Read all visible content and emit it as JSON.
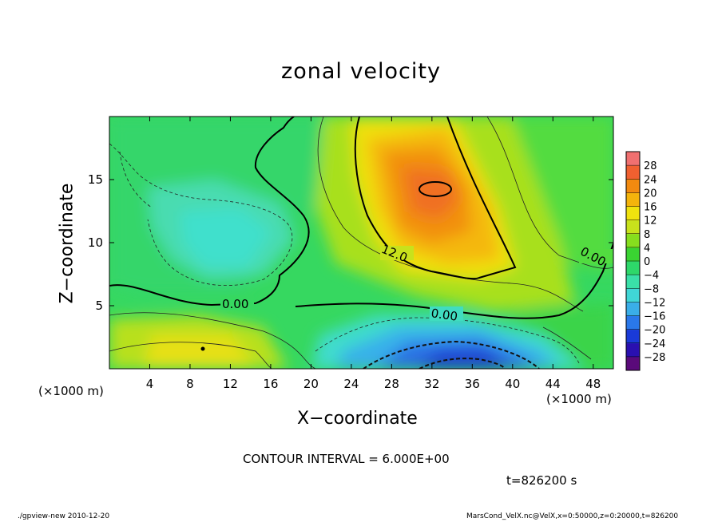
{
  "chart_data": {
    "type": "heatmap",
    "title": "zonal velocity",
    "xlabel": "X−coordinate",
    "ylabel": "Z−coordinate",
    "x_unit_left": "(×1000 m)",
    "x_unit_right": "(×1000 m)",
    "xlim": [
      0,
      50
    ],
    "ylim": [
      0,
      20
    ],
    "x_ticks": [
      4,
      8,
      12,
      16,
      20,
      24,
      28,
      32,
      36,
      40,
      44,
      48
    ],
    "y_ticks": [
      5,
      10,
      15
    ],
    "colorbar": {
      "labels": [
        "28",
        "24",
        "20",
        "16",
        "12",
        "8",
        "4",
        "0",
        "−4",
        "−8",
        "−12",
        "−16",
        "−20",
        "−24",
        "−28"
      ],
      "range": [
        -30,
        30
      ],
      "colors": [
        "#5a0a7a",
        "#2a10b0",
        "#1a3ad8",
        "#2a78ea",
        "#3aaee8",
        "#40d6d6",
        "#3ae0a8",
        "#2ed86a",
        "#3ad432",
        "#86de1e",
        "#c8e21c",
        "#f0e20e",
        "#f4b40c",
        "#f28a10",
        "#f06030",
        "#f07070"
      ]
    },
    "contour_labels": [
      "0.00",
      "0.00",
      "0.00",
      "12.0"
    ],
    "contour_interval": "CONTOUR INTERVAL = 6.000E+00",
    "time": "t=826200 s"
  },
  "footer": {
    "left": "./gpview-new  2010-12-20",
    "right": "MarsCond_VelX.nc@VelX,x=0:50000,z=0:20000,t=826200"
  }
}
